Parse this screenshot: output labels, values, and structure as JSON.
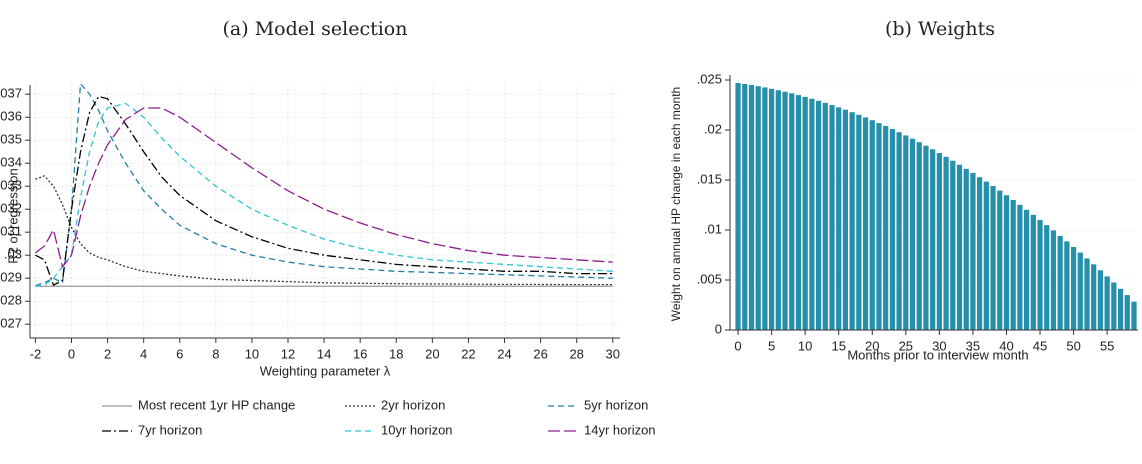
{
  "chart_data": [
    {
      "type": "line",
      "title": "(a) Model selection",
      "xlabel": "Weighting parameter λ",
      "ylabel": "R2 of regression",
      "x": [
        -2,
        -1.5,
        -1,
        -0.5,
        0,
        0.5,
        1,
        1.5,
        2,
        3,
        4,
        5,
        6,
        8,
        10,
        12,
        14,
        16,
        18,
        20,
        22,
        24,
        26,
        28,
        30
      ],
      "series": [
        {
          "name": "Most recent 1yr HP change",
          "color": "#999999",
          "style": "solid",
          "values": [
            0.02865,
            0.02865,
            0.02865,
            0.02865,
            0.02865,
            0.02865,
            0.02865,
            0.02865,
            0.02865,
            0.02865,
            0.02865,
            0.02865,
            0.02865,
            0.02865,
            0.02865,
            0.02865,
            0.02865,
            0.02865,
            0.02865,
            0.02865,
            0.02865,
            0.02865,
            0.02865,
            0.02865,
            0.02865
          ]
        },
        {
          "name": "2yr horizon",
          "color": "#333333",
          "style": "dotted",
          "values": [
            0.0333,
            0.03345,
            0.033,
            0.0322,
            0.0312,
            0.0305,
            0.0301,
            0.0299,
            0.0298,
            0.0295,
            0.0293,
            0.0292,
            0.0291,
            0.02895,
            0.0289,
            0.02885,
            0.0288,
            0.02878,
            0.02876,
            0.02875,
            0.02874,
            0.02873,
            0.02873,
            0.02872,
            0.02872
          ]
        },
        {
          "name": "5yr horizon",
          "color": "#1f7fa6",
          "style": "dashed",
          "values": [
            0.02868,
            0.0288,
            0.029,
            0.0288,
            0.032,
            0.03745,
            0.037,
            0.0363,
            0.0354,
            0.034,
            0.0328,
            0.032,
            0.0313,
            0.0305,
            0.03,
            0.0297,
            0.0295,
            0.0294,
            0.0293,
            0.02925,
            0.0292,
            0.02915,
            0.0291,
            0.02905,
            0.029
          ]
        },
        {
          "name": "7yr horizon",
          "color": "#000000",
          "style": "dashdot",
          "values": [
            0.03,
            0.0298,
            0.0287,
            0.0289,
            0.032,
            0.0345,
            0.0362,
            0.0369,
            0.0368,
            0.0357,
            0.0345,
            0.0334,
            0.0326,
            0.0315,
            0.0308,
            0.0303,
            0.03,
            0.0298,
            0.0296,
            0.0295,
            0.0294,
            0.0293,
            0.0293,
            0.0292,
            0.0292
          ]
        },
        {
          "name": "10yr horizon",
          "color": "#2fc7d3",
          "style": "dashed",
          "values": [
            0.02865,
            0.0287,
            0.029,
            0.0295,
            0.03,
            0.0325,
            0.0345,
            0.0358,
            0.0364,
            0.0366,
            0.036,
            0.0351,
            0.0343,
            0.033,
            0.032,
            0.0313,
            0.0307,
            0.0303,
            0.03,
            0.0298,
            0.0297,
            0.0296,
            0.0295,
            0.0294,
            0.0293
          ]
        },
        {
          "name": "14yr horizon",
          "color": "#8e1f8e",
          "style": "longdash",
          "values": [
            0.0301,
            0.0304,
            0.0311,
            0.0295,
            0.03,
            0.0317,
            0.033,
            0.034,
            0.0348,
            0.0359,
            0.0364,
            0.0364,
            0.036,
            0.0349,
            0.0338,
            0.0328,
            0.032,
            0.0314,
            0.0309,
            0.0305,
            0.0302,
            0.03,
            0.0299,
            0.0298,
            0.0297
          ]
        }
      ],
      "xlim": [
        -2.3,
        30.4
      ],
      "xticks": [
        -2,
        0,
        2,
        4,
        6,
        8,
        10,
        12,
        14,
        16,
        18,
        20,
        22,
        24,
        26,
        28,
        30
      ],
      "ylim": [
        0.0264,
        0.0374
      ],
      "yticks": [
        {
          "value": 0.027,
          "label": ".027"
        },
        {
          "value": 0.028,
          "label": ".028"
        },
        {
          "value": 0.029,
          "label": ".029"
        },
        {
          "value": 0.03,
          "label": ".03"
        },
        {
          "value": 0.031,
          "label": ".031"
        },
        {
          "value": 0.032,
          "label": ".032"
        },
        {
          "value": 0.033,
          "label": ".033"
        },
        {
          "value": 0.034,
          "label": ".034"
        },
        {
          "value": 0.035,
          "label": ".035"
        },
        {
          "value": 0.036,
          "label": ".036"
        },
        {
          "value": 0.037,
          "label": ".037"
        }
      ],
      "grid": true,
      "legend": "bottom"
    },
    {
      "type": "bar",
      "title": "(b) Weights",
      "xlabel": "Months prior to interview month",
      "ylabel": "Weight on annual HP change in each month",
      "color": "#2690aa",
      "x": [
        0,
        1,
        2,
        3,
        4,
        5,
        6,
        7,
        8,
        9,
        10,
        11,
        12,
        13,
        14,
        15,
        16,
        17,
        18,
        19,
        20,
        21,
        22,
        23,
        24,
        25,
        26,
        27,
        28,
        29,
        30,
        31,
        32,
        33,
        34,
        35,
        36,
        37,
        38,
        39,
        40,
        41,
        42,
        43,
        44,
        45,
        46,
        47,
        48,
        49,
        50,
        51,
        52,
        53,
        54,
        55,
        56,
        57,
        58,
        59
      ],
      "values": [
        0.0247,
        0.0246,
        0.0245,
        0.02438,
        0.02426,
        0.02412,
        0.02398,
        0.02383,
        0.02367,
        0.02349,
        0.02331,
        0.02312,
        0.02292,
        0.02271,
        0.02249,
        0.02226,
        0.02203,
        0.02178,
        0.02152,
        0.02126,
        0.02098,
        0.02069,
        0.0204,
        0.0201,
        0.01978,
        0.01946,
        0.01913,
        0.01878,
        0.01843,
        0.01807,
        0.0177,
        0.01732,
        0.01693,
        0.01653,
        0.01612,
        0.01571,
        0.01528,
        0.01484,
        0.0144,
        0.01394,
        0.01348,
        0.013,
        0.01252,
        0.01202,
        0.01152,
        0.01101,
        0.01049,
        0.00996,
        0.00941,
        0.00886,
        0.0083,
        0.00774,
        0.00716,
        0.00657,
        0.00597,
        0.00536,
        0.00475,
        0.00412,
        0.00349,
        0.00284
      ],
      "xlim": [
        -1.2,
        59.6
      ],
      "xticks": [
        0,
        5,
        10,
        15,
        20,
        25,
        30,
        35,
        40,
        45,
        50,
        55
      ],
      "ylim": [
        0,
        0.0255
      ],
      "yticks": [
        0,
        {
          "value": 0.005,
          "label": ".005"
        },
        {
          "value": 0.01,
          "label": ".01"
        },
        {
          "value": 0.015,
          "label": ".015"
        },
        {
          "value": 0.02,
          "label": ".02"
        },
        {
          "value": 0.025,
          "label": ".025"
        }
      ],
      "grid": true
    }
  ]
}
